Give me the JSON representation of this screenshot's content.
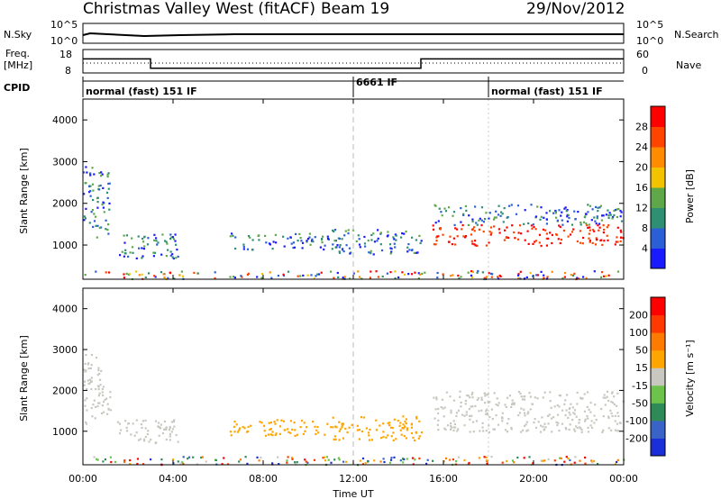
{
  "header": {
    "station": "Christmas Valley West (fitACF)",
    "beam": "Beam 19",
    "date": "29/Nov/2012"
  },
  "strip_labels": {
    "nsky": "N.Sky",
    "nsky_ticks": [
      "10^5",
      "10^0"
    ],
    "nsearch": "N.Search",
    "nsearch_ticks": [
      "10^5",
      "10^0"
    ],
    "freq": "Freq.",
    "freq_unit": "[MHz]",
    "freq_ticks": [
      "18",
      "8"
    ],
    "nave_ticks": [
      "60",
      "0"
    ],
    "nave": "Nave",
    "cpid": "CPID",
    "cpid_segments": [
      {
        "label": "normal (fast) 151 IF",
        "start": "00:00",
        "end": "12:00"
      },
      {
        "label": "6661 IF",
        "start": "12:00",
        "end": "18:00"
      },
      {
        "label": "normal (fast) 151 IF",
        "start": "18:00",
        "end": "24:00"
      }
    ]
  },
  "axes": {
    "x_label": "Time UT",
    "x_ticks": [
      "00:00",
      "04:00",
      "08:00",
      "12:00",
      "16:00",
      "20:00",
      "00:00"
    ],
    "y_label": "Slant Range [km]",
    "y_ticks": [
      "1000",
      "2000",
      "3000",
      "4000"
    ]
  },
  "power_colorbar": {
    "label": "Power [dB]",
    "ticks": [
      "4",
      "8",
      "12",
      "16",
      "20",
      "24",
      "28"
    ],
    "colors": [
      "#1a1aff",
      "#2a5fd6",
      "#2f8f73",
      "#5fa84a",
      "#f3c300",
      "#ff8c00",
      "#ff4400",
      "#ff0000"
    ]
  },
  "velocity_colorbar": {
    "label": "Velocity [m s⁻¹]",
    "ticks": [
      "200",
      "100",
      "50",
      "15",
      "-15",
      "-50",
      "-100",
      "-200"
    ],
    "colors": [
      "#1a2fd9",
      "#3a63c8",
      "#2e8b57",
      "#6cc24a",
      "#c8c8c0",
      "#ffa500",
      "#ff7a00",
      "#ff3a00",
      "#ff0000"
    ]
  },
  "chart_data": {
    "type": "heatmap",
    "x_range_hours": [
      0,
      24
    ],
    "y_range_km": [
      180,
      4500
    ],
    "scatter_regions": [
      {
        "t0": 0.0,
        "t1": 1.2,
        "r0": 1200,
        "r1": 2900
      },
      {
        "t0": 1.5,
        "t1": 4.2,
        "r0": 700,
        "r1": 1300
      },
      {
        "t0": 6.5,
        "t1": 11.5,
        "r0": 900,
        "r1": 1300
      },
      {
        "t0": 11.0,
        "t1": 15.0,
        "r0": 800,
        "r1": 1400
      },
      {
        "t0": 15.5,
        "t1": 24.0,
        "r0": 1000,
        "r1": 2000
      },
      {
        "t0": 0.0,
        "t1": 24.0,
        "r0": 200,
        "r1": 400
      }
    ],
    "frequency_MHz": [
      {
        "t": "00:00",
        "v": 14
      },
      {
        "t": "03:00",
        "v": 10
      },
      {
        "t": "15:00",
        "v": 14
      },
      {
        "t": "24:00",
        "v": 14
      }
    ]
  }
}
